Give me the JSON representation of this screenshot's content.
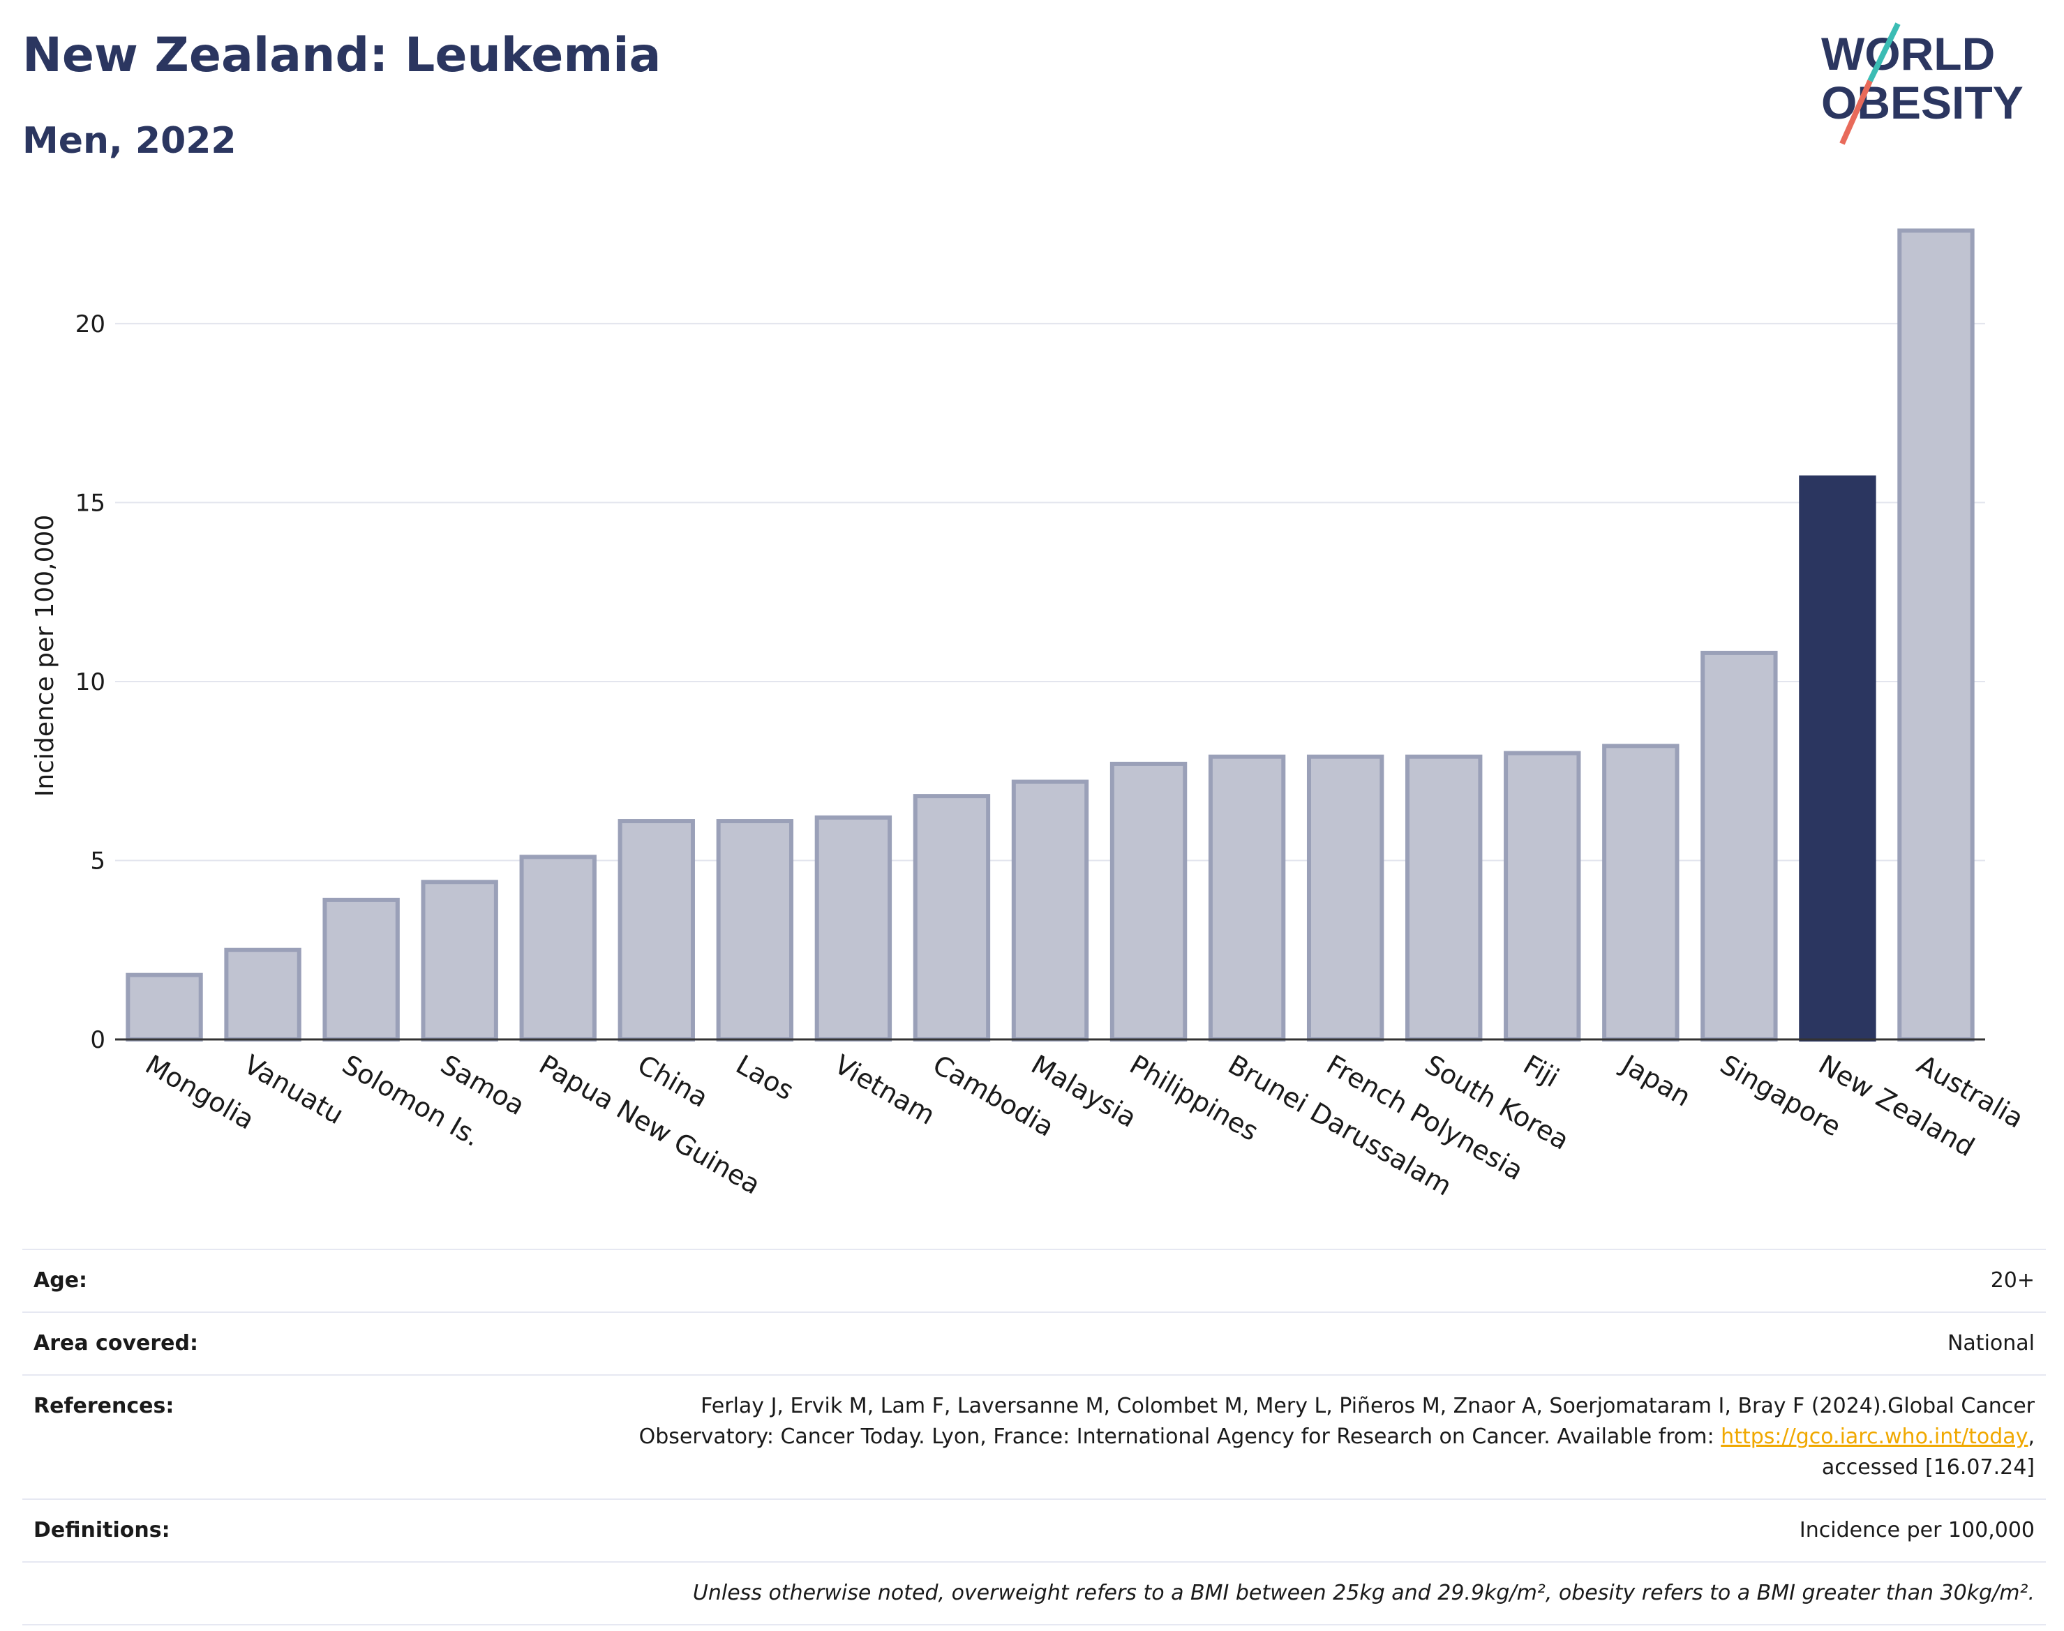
{
  "header": {
    "title": "New Zealand: Leukemia",
    "subtitle": "Men, 2022",
    "logo_line1": "WORLD",
    "logo_line2": "OBESITY"
  },
  "colors": {
    "accent": "#2b3660",
    "bar": "#c0c3d1",
    "bar_stroke": "#9aa0b8",
    "highlight": "#2b3660",
    "link": "#f0a800"
  },
  "chart_data": {
    "type": "bar",
    "ylabel": "Incidence per 100,000",
    "ylim": [
      0,
      23
    ],
    "yticks": [
      0,
      5,
      10,
      15,
      20
    ],
    "grid": true,
    "highlight": "New Zealand",
    "categories": [
      "Mongolia",
      "Vanuatu",
      "Solomon Is.",
      "Samoa",
      "Papua New Guinea",
      "China",
      "Laos",
      "Vietnam",
      "Cambodia",
      "Malaysia",
      "Philippines",
      "Brunei Darussalam",
      "French Polynesia",
      "South Korea",
      "Fiji",
      "Japan",
      "Singapore",
      "New Zealand",
      "Australia"
    ],
    "values": [
      1.8,
      2.5,
      3.9,
      4.4,
      5.1,
      6.1,
      6.1,
      6.2,
      6.8,
      7.2,
      7.7,
      7.9,
      7.9,
      7.9,
      8.0,
      8.2,
      10.8,
      15.7,
      22.6
    ]
  },
  "info": {
    "age_label": "Age:",
    "age_value": "20+",
    "area_label": "Area covered:",
    "area_value": "National",
    "references_label": "References:",
    "references_line1": "Ferlay J, Ervik M, Lam F, Laversanne M, Colombet M, Mery L, Piñeros M, Znaor A, Soerjomataram I, Bray F (2024).Global Cancer",
    "references_line2_pre": "Observatory: Cancer Today. Lyon, France: International Agency for Research on Cancer. Available from:",
    "references_link": "https://gco.iarc.who.int/today",
    "references_line3": "accessed [16.07.24]",
    "definitions_label": "Definitions:",
    "definitions_value": "Incidence per 100,000",
    "note": "Unless otherwise noted, overweight refers to a BMI between 25kg and 29.9kg/m², obesity refers to a BMI greater than 30kg/m²."
  }
}
